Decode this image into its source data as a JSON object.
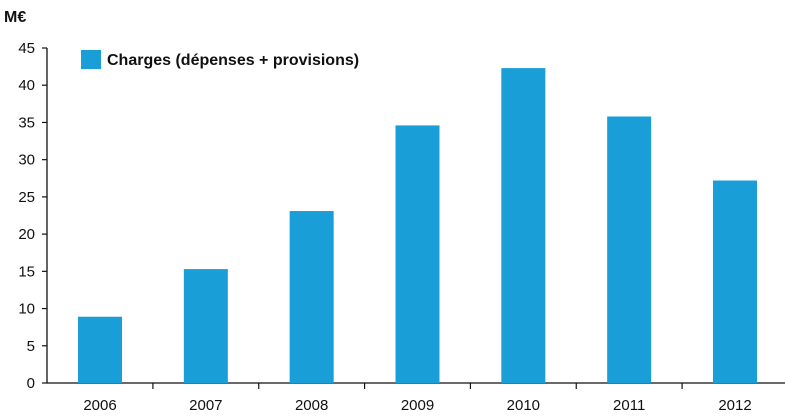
{
  "chart_data": {
    "type": "bar",
    "title": "",
    "unit_label": "M€",
    "xlabel": "",
    "ylabel": "",
    "categories": [
      "2006",
      "2007",
      "2008",
      "2009",
      "2010",
      "2011",
      "2012"
    ],
    "series": [
      {
        "name": "Charges (dépenses + provisions)",
        "values": [
          8.9,
          15.3,
          23.1,
          34.6,
          42.3,
          35.8,
          27.2
        ]
      }
    ],
    "ylim": [
      0,
      45
    ],
    "yticks": [
      0,
      5,
      10,
      15,
      20,
      25,
      30,
      35,
      40,
      45
    ],
    "grid": false,
    "legend_position": "top-left",
    "colors": {
      "bar": "#199ed8",
      "axis": "#111111"
    }
  }
}
